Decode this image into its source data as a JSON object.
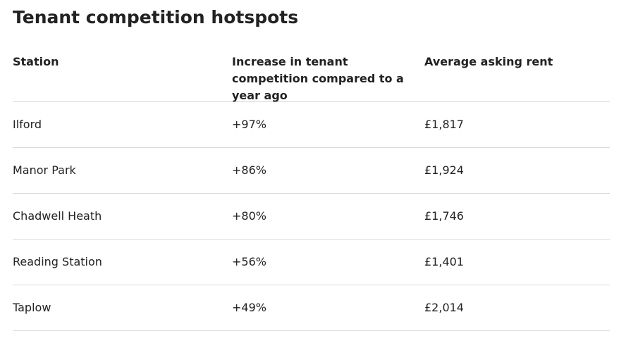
{
  "title": "Tenant competition hotspots",
  "table": {
    "headers": [
      "Station",
      "Increase in tenant competition compared to a year ago",
      "Average asking rent"
    ],
    "rows": [
      [
        "Ilford",
        "+97%",
        "£1,817"
      ],
      [
        "Manor Park",
        "+86%",
        "£1,924"
      ],
      [
        "Chadwell Heath",
        "+80%",
        "£1,746"
      ],
      [
        "Reading Station",
        "+56%",
        "£1,401"
      ],
      [
        "Taplow",
        "+49%",
        "£2,014"
      ]
    ]
  }
}
